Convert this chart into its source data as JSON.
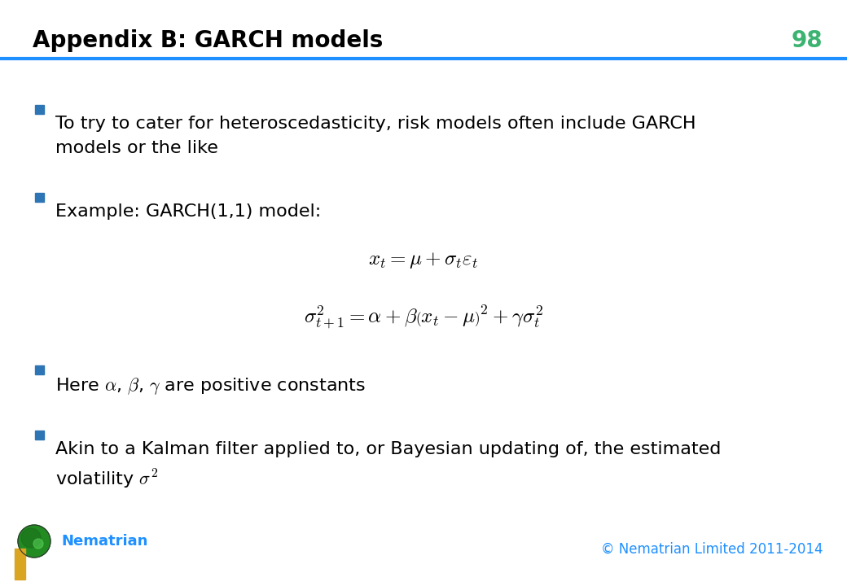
{
  "title": "Appendix B: GARCH models",
  "slide_number": "98",
  "title_color": "#000000",
  "title_fontsize": 20,
  "slide_number_color": "#3CB371",
  "header_line_color": "#1E90FF",
  "background_color": "#FFFFFF",
  "bullet_color": "#2E75B6",
  "bullet_text_color": "#000000",
  "bullet_fontsize": 16,
  "eq_fontsize": 18,
  "eq1": "$x_t = \\mu + \\sigma_t\\varepsilon_t$",
  "eq2": "$\\sigma^2_{t+1} = \\alpha + \\beta\\left(x_t - \\mu\\right)^2 + \\gamma\\sigma^2_t$",
  "footer_brand": "Nematrian",
  "footer_brand_color": "#1E90FF",
  "footer_copyright": "© Nematrian Limited 2011-2014",
  "footer_copyright_color": "#1E90FF",
  "footer_fontsize": 12,
  "bottom_bar_color": "#DAA520",
  "logo_color": "#228B22"
}
